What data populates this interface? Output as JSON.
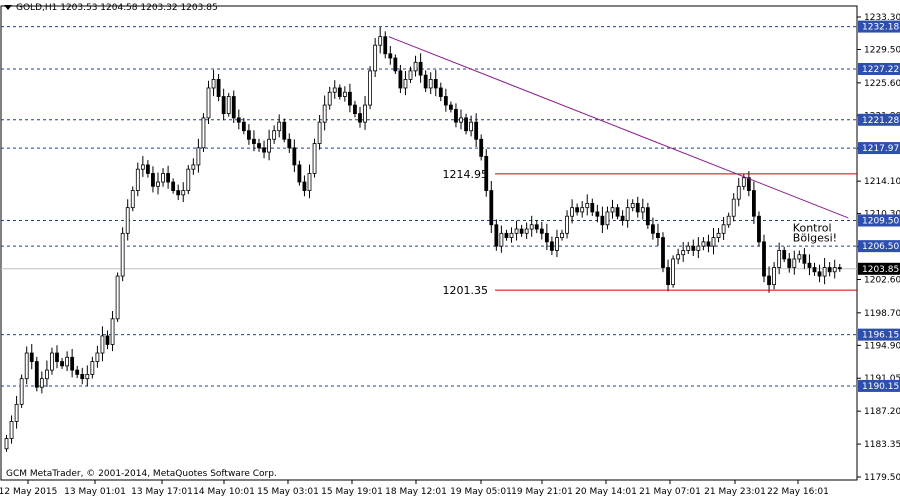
{
  "header": {
    "symbol_line": "GOLD,H1  1203.53 1204.58 1203.32 1203.85"
  },
  "footer": {
    "copyright": "GCM MetaTrader, © 2001-2014, MetaQuotes Software Corp."
  },
  "colors": {
    "background": "#ffffff",
    "candle": "#000000",
    "level_line": "#1f3f9f",
    "level_box": "#2e4fae",
    "range_line": "#cc0000",
    "trend_line": "#8b1a8b",
    "current_price_box": "#000000"
  },
  "chart_data": {
    "type": "candlestick",
    "instrument": "GOLD",
    "timeframe": "H1",
    "ohlc_current": {
      "open": 1203.53,
      "high": 1204.58,
      "low": 1203.32,
      "close": 1203.85
    },
    "ylim": [
      1179.5,
      1233.3
    ],
    "y_ticks": [
      1233.3,
      1229.5,
      1225.6,
      1221.8,
      1217.95,
      1214.1,
      1210.3,
      1206.45,
      1202.6,
      1198.7,
      1194.9,
      1191.05,
      1187.2,
      1183.35,
      1179.5
    ],
    "x_ticks": [
      "12 May 2015",
      "13 May 01:01",
      "13 May 17:01",
      "14 May 10:01",
      "15 May 03:01",
      "15 May 19:01",
      "18 May 12:01",
      "19 May 05:01",
      "19 May 21:01",
      "20 May 14:01",
      "21 May 07:01",
      "21 May 23:01",
      "22 May 16:01"
    ],
    "horizontal_levels": [
      1232.18,
      1227.22,
      1221.28,
      1217.97,
      1209.5,
      1206.5,
      1196.15,
      1190.15
    ],
    "current_price": 1203.85,
    "range_levels": [
      {
        "value": 1214.95,
        "label": "1214.95"
      },
      {
        "value": 1201.35,
        "label": "1201.35"
      }
    ],
    "trend_line": {
      "from": {
        "bar": 76,
        "value": 1231.0
      },
      "to": {
        "bar": 167,
        "value": 1209.8
      }
    },
    "annotation": {
      "lines": [
        "Kontrol",
        "Bölgesi!"
      ],
      "bar": 156,
      "value": 1208.2
    },
    "close_path": [
      1184,
      1186,
      1188,
      1191,
      1194,
      1193,
      1190,
      1191,
      1192,
      1194,
      1193,
      1192.5,
      1193.5,
      1192,
      1191.5,
      1191,
      1191.5,
      1193,
      1194,
      1196,
      1195,
      1198,
      1203,
      1208,
      1211,
      1213,
      1215.5,
      1216,
      1215,
      1213.5,
      1214,
      1215,
      1214,
      1213,
      1212.5,
      1213,
      1215.5,
      1216,
      1218,
      1221.5,
      1225,
      1226,
      1224,
      1222,
      1224,
      1221.5,
      1221,
      1220,
      1219,
      1218.5,
      1218,
      1217.5,
      1219,
      1220,
      1221,
      1219,
      1218,
      1216,
      1214,
      1213,
      1215,
      1218.5,
      1221,
      1223,
      1224.5,
      1225,
      1224,
      1224.5,
      1223,
      1222,
      1221,
      1223,
      1227,
      1230,
      1231,
      1229,
      1228.5,
      1227,
      1225,
      1226,
      1227,
      1228,
      1226.5,
      1225,
      1226,
      1225,
      1224,
      1223,
      1222.5,
      1221,
      1221.5,
      1220,
      1221,
      1219,
      1217,
      1213,
      1209,
      1206.5,
      1208,
      1207.5,
      1208,
      1208.5,
      1208,
      1208.5,
      1209,
      1208.5,
      1208,
      1207,
      1206,
      1207.5,
      1208,
      1210,
      1211,
      1210.5,
      1211,
      1211.5,
      1210.5,
      1210,
      1209,
      1210.5,
      1211,
      1210,
      1209.5,
      1211,
      1211.5,
      1210.5,
      1211,
      1209,
      1208,
      1207.5,
      1204,
      1202,
      1205,
      1205.5,
      1206,
      1206.5,
      1206,
      1206.5,
      1207,
      1206.5,
      1207.5,
      1208,
      1209,
      1210,
      1212,
      1213.5,
      1214.5,
      1213,
      1210,
      1207,
      1203,
      1202,
      1204,
      1206,
      1205,
      1204,
      1205,
      1205.5,
      1204.5,
      1204,
      1203.5,
      1203,
      1204,
      1203.5,
      1204,
      1203.85
    ]
  }
}
